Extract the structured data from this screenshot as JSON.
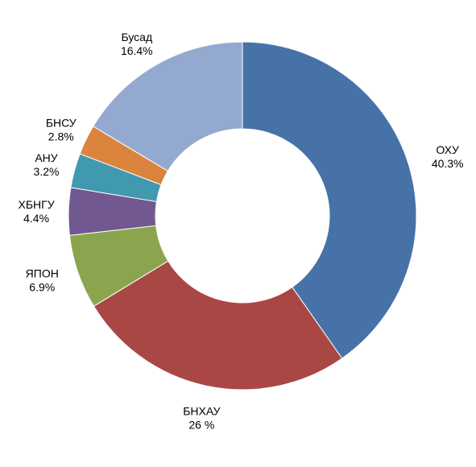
{
  "chart_data": {
    "type": "pie",
    "donut": true,
    "legend": "none",
    "series": [
      {
        "name": "ОХУ",
        "value": 40.3,
        "value_label": "40.3%",
        "color": "#4672A8"
      },
      {
        "name": "БНХАУ",
        "value": 26.0,
        "value_label": "26 %",
        "color": "#A94745"
      },
      {
        "name": "ЯПОН",
        "value": 6.9,
        "value_label": "6.9%",
        "color": "#8BA54F"
      },
      {
        "name": "ХБНГУ",
        "value": 4.4,
        "value_label": "4.4%",
        "color": "#725890"
      },
      {
        "name": "АНУ",
        "value": 3.2,
        "value_label": "3.2%",
        "color": "#4199AF"
      },
      {
        "name": "БНСУ",
        "value": 2.8,
        "value_label": "2.8%",
        "color": "#DB843D"
      },
      {
        "name": "Бусад",
        "value": 16.4,
        "value_label": "16.4%",
        "color": "#94A9D0"
      }
    ]
  }
}
